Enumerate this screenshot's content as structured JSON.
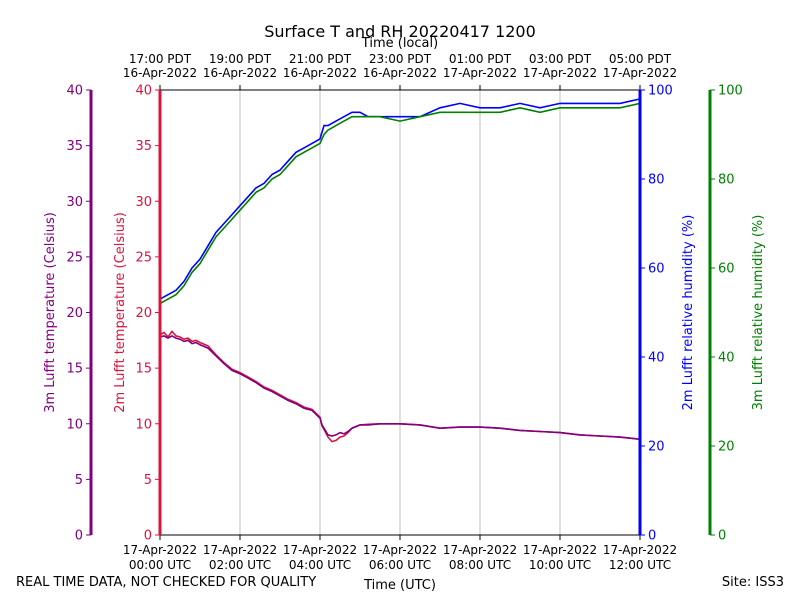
{
  "chart_data": {
    "type": "line",
    "title": "Surface T and RH 20220417 1200",
    "x_bottom": {
      "label": "Time (UTC)",
      "ticks": [
        {
          "line1": "17-Apr-2022",
          "line2": "00:00 UTC"
        },
        {
          "line1": "17-Apr-2022",
          "line2": "02:00 UTC"
        },
        {
          "line1": "17-Apr-2022",
          "line2": "04:00 UTC"
        },
        {
          "line1": "17-Apr-2022",
          "line2": "06:00 UTC"
        },
        {
          "line1": "17-Apr-2022",
          "line2": "08:00 UTC"
        },
        {
          "line1": "17-Apr-2022",
          "line2": "10:00 UTC"
        },
        {
          "line1": "17-Apr-2022",
          "line2": "12:00 UTC"
        }
      ],
      "range_hours_utc": [
        0,
        12
      ]
    },
    "x_top": {
      "label": "Time (local)",
      "ticks": [
        {
          "line1": "17:00 PDT",
          "line2": "16-Apr-2022"
        },
        {
          "line1": "19:00 PDT",
          "line2": "16-Apr-2022"
        },
        {
          "line1": "21:00 PDT",
          "line2": "16-Apr-2022"
        },
        {
          "line1": "23:00 PDT",
          "line2": "16-Apr-2022"
        },
        {
          "line1": "01:00 PDT",
          "line2": "17-Apr-2022"
        },
        {
          "line1": "03:00 PDT",
          "line2": "17-Apr-2022"
        },
        {
          "line1": "05:00 PDT",
          "line2": "17-Apr-2022"
        }
      ]
    },
    "y_axes": {
      "temp_3m": {
        "label": "3m Lufft temperature (Celsius)",
        "ylim": [
          0,
          40
        ],
        "ticks": [
          0,
          5,
          10,
          15,
          20,
          25,
          30,
          35,
          40
        ],
        "color": "#800080"
      },
      "temp_2m": {
        "label": "2m Lufft temperature (Celsius)",
        "ylim": [
          0,
          40
        ],
        "ticks": [
          0,
          5,
          10,
          15,
          20,
          25,
          30,
          35,
          40
        ],
        "color": "#dc143c"
      },
      "rh_2m": {
        "label": "2m Lufft relative humidity (%)",
        "ylim": [
          0,
          100
        ],
        "ticks": [
          0,
          20,
          40,
          60,
          80,
          100
        ],
        "color": "#0000ff"
      },
      "rh_3m": {
        "label": "3m Lufft relative humidity (%)",
        "ylim": [
          0,
          100
        ],
        "ticks": [
          0,
          20,
          40,
          60,
          80,
          100
        ],
        "color": "#008000"
      }
    },
    "grid": "vertical",
    "series": [
      {
        "name": "2m Lufft temperature (Celsius)",
        "axis": "temp_2m",
        "color": "#dc143c",
        "x": [
          0,
          0.1,
          0.2,
          0.3,
          0.4,
          0.5,
          0.6,
          0.7,
          0.8,
          0.9,
          1.0,
          1.2,
          1.4,
          1.6,
          1.8,
          2.0,
          2.2,
          2.4,
          2.6,
          2.8,
          3.0,
          3.2,
          3.4,
          3.6,
          3.8,
          4.0,
          4.05,
          4.1,
          4.2,
          4.3,
          4.4,
          4.5,
          4.6,
          4.7,
          4.8,
          5.0,
          5.2,
          5.5,
          6.0,
          6.5,
          7.0,
          7.5,
          8.0,
          8.5,
          9.0,
          9.5,
          10.0,
          10.5,
          11.0,
          11.5,
          12.0
        ],
        "y": [
          18.0,
          18.2,
          17.8,
          18.3,
          17.9,
          17.8,
          17.6,
          17.7,
          17.4,
          17.5,
          17.3,
          17.0,
          16.2,
          15.5,
          14.9,
          14.6,
          14.2,
          13.8,
          13.3,
          13.0,
          12.6,
          12.2,
          11.9,
          11.5,
          11.3,
          10.6,
          9.8,
          9.5,
          8.8,
          8.4,
          8.5,
          8.8,
          8.9,
          9.2,
          9.6,
          9.9,
          9.95,
          10.0,
          10.0,
          9.9,
          9.6,
          9.7,
          9.7,
          9.6,
          9.4,
          9.3,
          9.2,
          9.0,
          8.9,
          8.8,
          8.6
        ]
      },
      {
        "name": "3m Lufft temperature (Celsius)",
        "axis": "temp_3m",
        "color": "#800080",
        "x": [
          0,
          0.1,
          0.2,
          0.3,
          0.4,
          0.5,
          0.6,
          0.7,
          0.8,
          0.9,
          1.0,
          1.2,
          1.4,
          1.6,
          1.8,
          2.0,
          2.2,
          2.4,
          2.6,
          2.8,
          3.0,
          3.2,
          3.4,
          3.6,
          3.8,
          4.0,
          4.05,
          4.1,
          4.2,
          4.3,
          4.4,
          4.5,
          4.6,
          4.7,
          4.8,
          5.0,
          5.2,
          5.5,
          6.0,
          6.5,
          7.0,
          7.5,
          8.0,
          8.5,
          9.0,
          9.5,
          10.0,
          10.5,
          11.0,
          11.5,
          12.0
        ],
        "y": [
          17.8,
          17.9,
          17.7,
          17.9,
          17.7,
          17.6,
          17.4,
          17.5,
          17.2,
          17.3,
          17.1,
          16.8,
          16.1,
          15.4,
          14.8,
          14.5,
          14.1,
          13.7,
          13.2,
          12.9,
          12.5,
          12.1,
          11.8,
          11.4,
          11.2,
          10.5,
          9.9,
          9.6,
          9.0,
          8.9,
          9.0,
          9.2,
          9.1,
          9.3,
          9.6,
          9.9,
          9.9,
          10.0,
          10.0,
          9.9,
          9.6,
          9.7,
          9.7,
          9.6,
          9.4,
          9.3,
          9.2,
          9.0,
          8.9,
          8.8,
          8.6
        ]
      },
      {
        "name": "2m Lufft relative humidity (%)",
        "axis": "rh_2m",
        "color": "#0000ff",
        "x": [
          0,
          0.2,
          0.4,
          0.6,
          0.8,
          1.0,
          1.2,
          1.4,
          1.6,
          1.8,
          2.0,
          2.2,
          2.4,
          2.6,
          2.8,
          3.0,
          3.2,
          3.4,
          3.6,
          3.8,
          4.0,
          4.1,
          4.2,
          4.4,
          4.6,
          4.8,
          5.0,
          5.2,
          5.5,
          6.0,
          6.5,
          7.0,
          7.5,
          8.0,
          8.5,
          9.0,
          9.5,
          10.0,
          10.5,
          11.0,
          11.5,
          12.0
        ],
        "y": [
          53,
          54,
          55,
          57,
          60,
          62,
          65,
          68,
          70,
          72,
          74,
          76,
          78,
          79,
          81,
          82,
          84,
          86,
          87,
          88,
          89,
          92,
          92,
          93,
          94,
          95,
          95,
          94,
          94,
          94,
          94,
          96,
          97,
          96,
          96,
          97,
          96,
          97,
          97,
          97,
          97,
          98
        ]
      },
      {
        "name": "3m Lufft relative humidity (%)",
        "axis": "rh_3m",
        "color": "#008000",
        "x": [
          0,
          0.2,
          0.4,
          0.6,
          0.8,
          1.0,
          1.2,
          1.4,
          1.6,
          1.8,
          2.0,
          2.2,
          2.4,
          2.6,
          2.8,
          3.0,
          3.2,
          3.4,
          3.6,
          3.8,
          4.0,
          4.1,
          4.2,
          4.4,
          4.6,
          4.8,
          5.0,
          5.2,
          5.5,
          6.0,
          6.5,
          7.0,
          7.5,
          8.0,
          8.5,
          9.0,
          9.5,
          10.0,
          10.5,
          11.0,
          11.5,
          12.0
        ],
        "y": [
          52,
          53,
          54,
          56,
          59,
          61,
          64,
          67,
          69,
          71,
          73,
          75,
          77,
          78,
          80,
          81,
          83,
          85,
          86,
          87,
          88,
          90,
          91,
          92,
          93,
          94,
          94,
          94,
          94,
          93,
          94,
          95,
          95,
          95,
          95,
          96,
          95,
          96,
          96,
          96,
          96,
          97
        ]
      }
    ]
  },
  "footer": {
    "left": "REAL TIME DATA, NOT CHECKED FOR QUALITY",
    "right": "Site: ISS3"
  }
}
